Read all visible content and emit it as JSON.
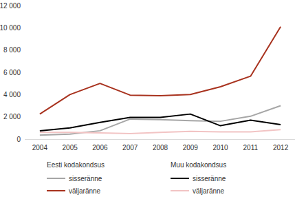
{
  "chart_data": {
    "type": "line",
    "categories": [
      "2004",
      "2005",
      "2006",
      "2007",
      "2008",
      "2009",
      "2010",
      "2011",
      "2012"
    ],
    "ylim": [
      0,
      12000
    ],
    "yticks": [
      0,
      {
        "value": 2000,
        "label": "2 000"
      },
      {
        "value": 4000,
        "label": "4 000"
      },
      {
        "value": 6000,
        "label": "6 000"
      },
      {
        "value": 8000,
        "label": "8 000"
      },
      {
        "value": 10000,
        "label": "10 000"
      },
      {
        "value": 12000,
        "label": "12 000"
      }
    ],
    "grid": false,
    "series": [
      {
        "name": "sisseränne",
        "group": "Eesti kodakondsus",
        "color": "#a6a6a6",
        "values": [
          350,
          450,
          750,
          1800,
          1750,
          1650,
          1600,
          2050,
          3000
        ]
      },
      {
        "name": "väljaränne",
        "group": "Eesti kodakondsus",
        "color": "#a8321e",
        "values": [
          2250,
          4000,
          5000,
          3950,
          3900,
          4000,
          4700,
          5650,
          10100
        ]
      },
      {
        "name": "sisseränne",
        "group": "Muu kodakondsus",
        "color": "#000000",
        "values": [
          750,
          1000,
          1500,
          1950,
          1950,
          2250,
          1200,
          1700,
          1300
        ]
      },
      {
        "name": "väljaränne",
        "group": "Muu kodakondsus",
        "color": "#f2c4c4",
        "values": [
          600,
          600,
          550,
          500,
          600,
          700,
          650,
          650,
          850
        ]
      }
    ]
  }
}
